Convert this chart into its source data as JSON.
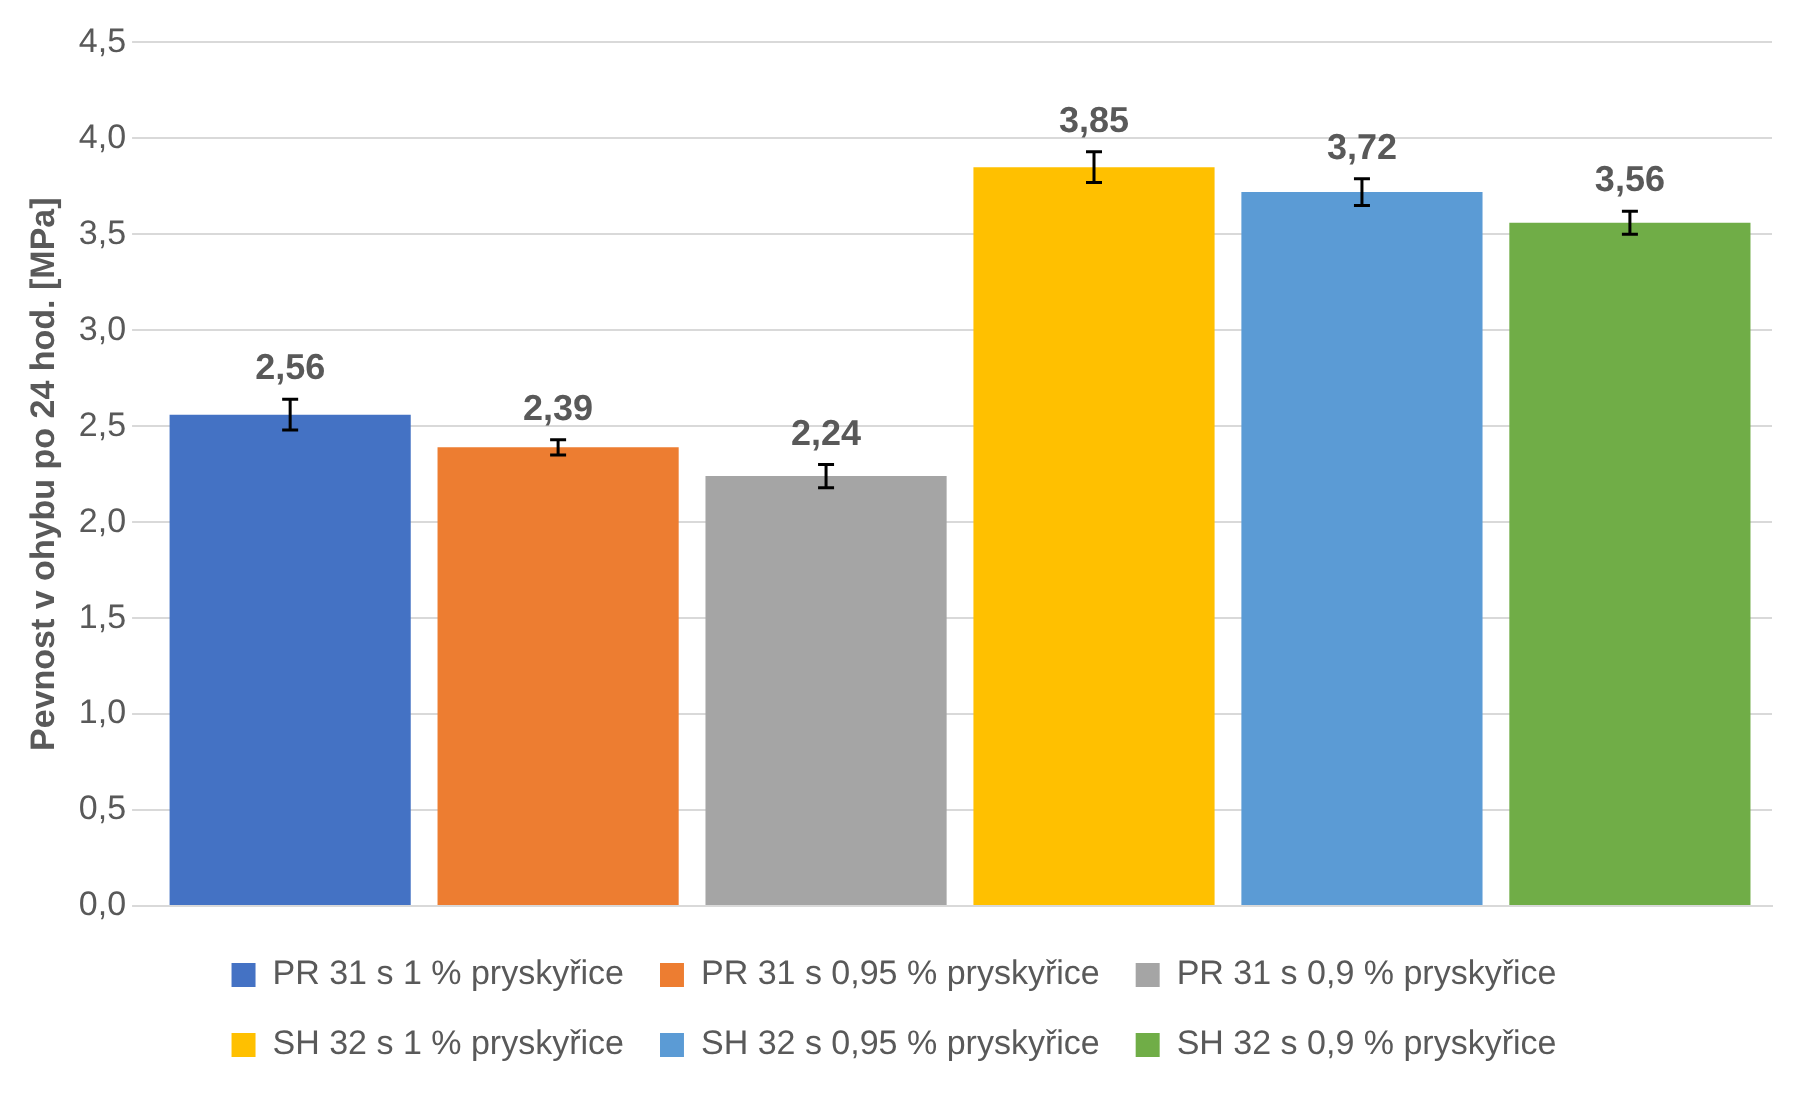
{
  "chart_data": {
    "type": "bar",
    "ylabel": "Pevnost v ohybu po 24 hod. [MPa]",
    "categories": [
      null
    ],
    "series": [
      {
        "name": "PR 31 s 1 % pryskyřice",
        "color": "#4472c4",
        "values": [
          2.56
        ],
        "errors": [
          0.08
        ],
        "value_labels": [
          "2,56"
        ]
      },
      {
        "name": "PR 31 s 0,95 % pryskyřice",
        "color": "#ed7d31",
        "values": [
          2.39
        ],
        "errors": [
          0.04
        ],
        "value_labels": [
          "2,39"
        ]
      },
      {
        "name": "PR 31 s 0,9 % pryskyřice",
        "color": "#a5a5a5",
        "values": [
          2.24
        ],
        "errors": [
          0.06
        ],
        "value_labels": [
          "2,24"
        ]
      },
      {
        "name": "SH 32 s 1 % pryskyřice",
        "color": "#ffc000",
        "values": [
          3.85
        ],
        "errors": [
          0.08
        ],
        "value_labels": [
          "3,85"
        ]
      },
      {
        "name": "SH 32 s 0,95 % pryskyřice",
        "color": "#5b9bd5",
        "values": [
          3.72
        ],
        "errors": [
          0.07
        ],
        "value_labels": [
          "3,72"
        ]
      },
      {
        "name": "SH 32 s 0,9 % pryskyřice",
        "color": "#70ad47",
        "values": [
          3.56
        ],
        "errors": [
          0.06
        ],
        "value_labels": [
          "3,56"
        ]
      }
    ],
    "ylim": [
      0,
      4.5
    ],
    "yticks": [
      {
        "value": 0,
        "label": "0,0"
      },
      {
        "value": 0.5,
        "label": "0,5"
      },
      {
        "value": 1,
        "label": "1,0"
      },
      {
        "value": 1.5,
        "label": "1,5"
      },
      {
        "value": 2,
        "label": "2,0"
      },
      {
        "value": 2.5,
        "label": "2,5"
      },
      {
        "value": 3,
        "label": "3,0"
      },
      {
        "value": 3.5,
        "label": "3,5"
      },
      {
        "value": 4,
        "label": "4,0"
      },
      {
        "value": 4.5,
        "label": "4,5"
      }
    ],
    "grid": "y",
    "legend": "bottom",
    "tick_labels": "y"
  }
}
